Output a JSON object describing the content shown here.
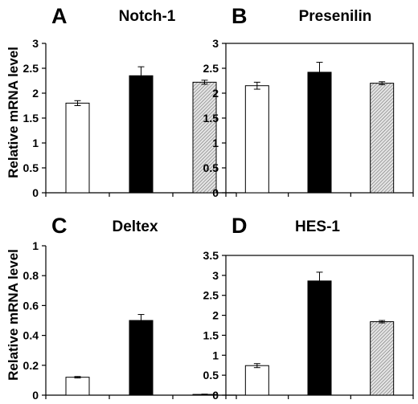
{
  "figure": {
    "ylabel_top": "Relative mRNA level",
    "ylabel_bottom": "Relative mRNA level"
  },
  "chart_data": [
    {
      "type": "bar",
      "panel_letter": "A",
      "title": "Notch-1",
      "categories": [
        "",
        "",
        ""
      ],
      "values": [
        1.8,
        2.35,
        2.22
      ],
      "errors": [
        0.05,
        0.18,
        0.04
      ],
      "fills": [
        "white",
        "black",
        "hatched"
      ],
      "ylim": [
        0,
        3
      ],
      "yticks": [
        0,
        0.5,
        1,
        1.5,
        2,
        2.5,
        3
      ],
      "ytick_labels": [
        "0",
        "0.5",
        "1",
        "1.5",
        "2",
        "2.5",
        "3"
      ],
      "ylabel": "Relative mRNA level",
      "grid": false,
      "frame": "open"
    },
    {
      "type": "bar",
      "panel_letter": "B",
      "title": "Presenilin",
      "categories": [
        "",
        "",
        ""
      ],
      "values": [
        2.15,
        2.42,
        2.2
      ],
      "errors": [
        0.07,
        0.2,
        0.03
      ],
      "fills": [
        "white",
        "black",
        "hatched"
      ],
      "ylim": [
        0,
        3
      ],
      "yticks": [
        0,
        0.5,
        1,
        1.5,
        2,
        2.5,
        3
      ],
      "ytick_labels": [
        "0",
        "0.5",
        "1",
        "1.5",
        "2",
        "2.5",
        "3"
      ],
      "ylabel": "",
      "grid": false,
      "frame": "box"
    },
    {
      "type": "bar",
      "panel_letter": "C",
      "title": "Deltex",
      "categories": [
        "",
        "",
        ""
      ],
      "values": [
        0.12,
        0.5,
        0.005
      ],
      "errors": [
        0.005,
        0.04,
        0.002
      ],
      "fills": [
        "white",
        "black",
        "hatched"
      ],
      "ylim": [
        0,
        1
      ],
      "yticks": [
        0,
        0.2,
        0.4,
        0.6,
        0.8,
        1
      ],
      "ytick_labels": [
        "0",
        "0.2",
        "0.4",
        "0.6",
        "0.8",
        "1"
      ],
      "ylabel": "Relative mRNA level",
      "grid": false,
      "frame": "open"
    },
    {
      "type": "bar",
      "panel_letter": "D",
      "title": "HES-1",
      "categories": [
        "",
        "",
        ""
      ],
      "values": [
        0.74,
        2.86,
        1.84
      ],
      "errors": [
        0.05,
        0.22,
        0.03
      ],
      "fills": [
        "white",
        "black",
        "hatched"
      ],
      "ylim": [
        0,
        3.5
      ],
      "yticks": [
        0,
        0.5,
        1,
        1.5,
        2,
        2.5,
        3,
        3.5
      ],
      "ytick_labels": [
        "0",
        "0.5",
        "1",
        "1.5",
        "2",
        "2.5",
        "3",
        "3.5"
      ],
      "ylabel": "",
      "grid": false,
      "frame": "box"
    }
  ]
}
